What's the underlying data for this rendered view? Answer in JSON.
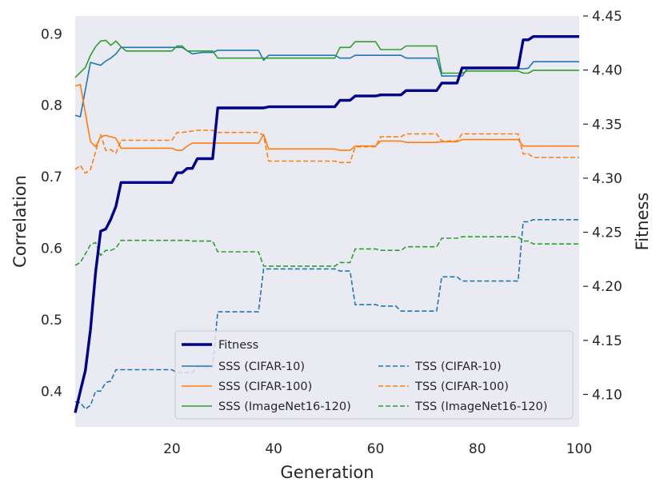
{
  "chart_data": {
    "type": "line",
    "title": "",
    "xlabel": "Generation",
    "ylabel_left": "Correlation",
    "ylabel_right": "Fitness",
    "xlim": [
      1,
      100
    ],
    "ylim_left": [
      0.35,
      0.925
    ],
    "ylim_right": [
      4.07,
      4.45
    ],
    "grid": false,
    "legend_position": "lower-right",
    "x_ticks": [
      {
        "value": 20,
        "label": "20"
      },
      {
        "value": 40,
        "label": "40"
      },
      {
        "value": 60,
        "label": "60"
      },
      {
        "value": 80,
        "label": "80"
      },
      {
        "value": 100,
        "label": "100"
      }
    ],
    "y_ticks_left": [
      {
        "value": 0.4,
        "label": "0.4"
      },
      {
        "value": 0.5,
        "label": "0.5"
      },
      {
        "value": 0.6,
        "label": "0.6"
      },
      {
        "value": 0.7,
        "label": "0.7"
      },
      {
        "value": 0.8,
        "label": "0.8"
      },
      {
        "value": 0.9,
        "label": "0.9"
      }
    ],
    "y_ticks_right": [
      {
        "value": 4.1,
        "label": "4.10"
      },
      {
        "value": 4.15,
        "label": "4.15"
      },
      {
        "value": 4.2,
        "label": "4.20"
      },
      {
        "value": 4.25,
        "label": "4.25"
      },
      {
        "value": 4.3,
        "label": "4.30"
      },
      {
        "value": 4.35,
        "label": "4.35"
      },
      {
        "value": 4.4,
        "label": "4.40"
      },
      {
        "value": 4.45,
        "label": "4.45"
      }
    ],
    "series": [
      {
        "name": "Fitness",
        "axis": "right",
        "color": "#00008b",
        "dash": "solid",
        "width": 3.4,
        "points": [
          [
            1,
            4.083
          ],
          [
            2,
            4.103
          ],
          [
            3,
            4.122
          ],
          [
            4,
            4.16
          ],
          [
            5,
            4.213
          ],
          [
            6,
            4.251
          ],
          [
            7,
            4.253
          ],
          [
            8,
            4.262
          ],
          [
            9,
            4.274
          ],
          [
            10,
            4.296
          ],
          [
            20,
            4.296
          ],
          [
            21,
            4.305
          ],
          [
            22,
            4.305
          ],
          [
            23,
            4.309
          ],
          [
            24,
            4.309
          ],
          [
            25,
            4.318
          ],
          [
            26,
            4.318
          ],
          [
            28,
            4.318
          ],
          [
            29,
            4.365
          ],
          [
            38,
            4.365
          ],
          [
            39,
            4.366
          ],
          [
            52,
            4.366
          ],
          [
            53,
            4.372
          ],
          [
            55,
            4.372
          ],
          [
            56,
            4.376
          ],
          [
            60,
            4.376
          ],
          [
            61,
            4.377
          ],
          [
            65,
            4.377
          ],
          [
            66,
            4.381
          ],
          [
            72,
            4.381
          ],
          [
            73,
            4.388
          ],
          [
            76,
            4.388
          ],
          [
            77,
            4.402
          ],
          [
            88,
            4.402
          ],
          [
            89,
            4.428
          ],
          [
            90,
            4.428
          ],
          [
            91,
            4.431
          ],
          [
            100,
            4.431
          ]
        ]
      },
      {
        "name": "SSS (CIFAR-10)",
        "axis": "left",
        "color": "#1f77b4",
        "dash": "solid",
        "width": 1.6,
        "points": [
          [
            1,
            0.786
          ],
          [
            2,
            0.784
          ],
          [
            4,
            0.86
          ],
          [
            6,
            0.856
          ],
          [
            7,
            0.862
          ],
          [
            8,
            0.866
          ],
          [
            9,
            0.872
          ],
          [
            10,
            0.881
          ],
          [
            20,
            0.881
          ],
          [
            22,
            0.881
          ],
          [
            24,
            0.872
          ],
          [
            26,
            0.874
          ],
          [
            28,
            0.874
          ],
          [
            29,
            0.877
          ],
          [
            37,
            0.877
          ],
          [
            38,
            0.863
          ],
          [
            39,
            0.87
          ],
          [
            52,
            0.87
          ],
          [
            53,
            0.866
          ],
          [
            55,
            0.866
          ],
          [
            56,
            0.87
          ],
          [
            65,
            0.87
          ],
          [
            66,
            0.866
          ],
          [
            72,
            0.866
          ],
          [
            73,
            0.841
          ],
          [
            77,
            0.841
          ],
          [
            78,
            0.851
          ],
          [
            89,
            0.851
          ],
          [
            90,
            0.852
          ],
          [
            91,
            0.861
          ],
          [
            100,
            0.861
          ]
        ]
      },
      {
        "name": "SSS (CIFAR-100)",
        "axis": "left",
        "color": "#ff7f0e",
        "dash": "solid",
        "width": 1.6,
        "points": [
          [
            1,
            0.827
          ],
          [
            2,
            0.829
          ],
          [
            4,
            0.749
          ],
          [
            5,
            0.742
          ],
          [
            6,
            0.756
          ],
          [
            7,
            0.758
          ],
          [
            8,
            0.756
          ],
          [
            9,
            0.754
          ],
          [
            10,
            0.74
          ],
          [
            20,
            0.74
          ],
          [
            21,
            0.737
          ],
          [
            22,
            0.737
          ],
          [
            23,
            0.743
          ],
          [
            24,
            0.747
          ],
          [
            37,
            0.747
          ],
          [
            38,
            0.759
          ],
          [
            39,
            0.739
          ],
          [
            52,
            0.739
          ],
          [
            53,
            0.737
          ],
          [
            55,
            0.737
          ],
          [
            56,
            0.743
          ],
          [
            60,
            0.743
          ],
          [
            61,
            0.75
          ],
          [
            65,
            0.75
          ],
          [
            66,
            0.748
          ],
          [
            72,
            0.748
          ],
          [
            73,
            0.749
          ],
          [
            76,
            0.749
          ],
          [
            77,
            0.752
          ],
          [
            88,
            0.752
          ],
          [
            89,
            0.743
          ],
          [
            100,
            0.743
          ]
        ]
      },
      {
        "name": "SSS (ImageNet16-120)",
        "axis": "left",
        "color": "#2ca02c",
        "dash": "solid",
        "width": 1.6,
        "points": [
          [
            1,
            0.839
          ],
          [
            2,
            0.846
          ],
          [
            3,
            0.853
          ],
          [
            4,
            0.87
          ],
          [
            5,
            0.882
          ],
          [
            6,
            0.89
          ],
          [
            7,
            0.891
          ],
          [
            8,
            0.884
          ],
          [
            9,
            0.89
          ],
          [
            10,
            0.882
          ],
          [
            11,
            0.876
          ],
          [
            20,
            0.876
          ],
          [
            21,
            0.883
          ],
          [
            22,
            0.883
          ],
          [
            23,
            0.876
          ],
          [
            28,
            0.876
          ],
          [
            29,
            0.866
          ],
          [
            52,
            0.866
          ],
          [
            53,
            0.881
          ],
          [
            55,
            0.881
          ],
          [
            56,
            0.889
          ],
          [
            60,
            0.889
          ],
          [
            61,
            0.878
          ],
          [
            65,
            0.878
          ],
          [
            66,
            0.883
          ],
          [
            72,
            0.883
          ],
          [
            73,
            0.845
          ],
          [
            77,
            0.845
          ],
          [
            78,
            0.848
          ],
          [
            88,
            0.848
          ],
          [
            89,
            0.845
          ],
          [
            90,
            0.845
          ],
          [
            91,
            0.849
          ],
          [
            100,
            0.849
          ]
        ]
      },
      {
        "name": "TSS (CIFAR-10)",
        "axis": "left",
        "color": "#1f77b4",
        "dash": "dashed",
        "width": 1.6,
        "points": [
          [
            1,
            0.385
          ],
          [
            2,
            0.384
          ],
          [
            3,
            0.375
          ],
          [
            4,
            0.38
          ],
          [
            5,
            0.4
          ],
          [
            6,
            0.4
          ],
          [
            7,
            0.412
          ],
          [
            8,
            0.414
          ],
          [
            9,
            0.43
          ],
          [
            20,
            0.43
          ],
          [
            21,
            0.426
          ],
          [
            24,
            0.426
          ],
          [
            25,
            0.434
          ],
          [
            28,
            0.434
          ],
          [
            29,
            0.511
          ],
          [
            37,
            0.511
          ],
          [
            38,
            0.571
          ],
          [
            52,
            0.571
          ],
          [
            53,
            0.568
          ],
          [
            55,
            0.568
          ],
          [
            56,
            0.521
          ],
          [
            60,
            0.521
          ],
          [
            61,
            0.519
          ],
          [
            64,
            0.519
          ],
          [
            65,
            0.512
          ],
          [
            72,
            0.512
          ],
          [
            73,
            0.56
          ],
          [
            76,
            0.56
          ],
          [
            77,
            0.554
          ],
          [
            88,
            0.554
          ],
          [
            89,
            0.637
          ],
          [
            90,
            0.637
          ],
          [
            91,
            0.64
          ],
          [
            100,
            0.64
          ]
        ]
      },
      {
        "name": "TSS (CIFAR-100)",
        "axis": "left",
        "color": "#ff7f0e",
        "dash": "dashed",
        "width": 1.6,
        "points": [
          [
            1,
            0.71
          ],
          [
            2,
            0.716
          ],
          [
            3,
            0.705
          ],
          [
            4,
            0.71
          ],
          [
            5,
            0.735
          ],
          [
            6,
            0.759
          ],
          [
            7,
            0.737
          ],
          [
            8,
            0.738
          ],
          [
            9,
            0.733
          ],
          [
            10,
            0.751
          ],
          [
            20,
            0.751
          ],
          [
            21,
            0.762
          ],
          [
            22,
            0.762
          ],
          [
            23,
            0.763
          ],
          [
            25,
            0.765
          ],
          [
            28,
            0.765
          ],
          [
            29,
            0.762
          ],
          [
            37,
            0.762
          ],
          [
            38,
            0.758
          ],
          [
            39,
            0.722
          ],
          [
            52,
            0.722
          ],
          [
            53,
            0.72
          ],
          [
            55,
            0.72
          ],
          [
            56,
            0.742
          ],
          [
            60,
            0.742
          ],
          [
            61,
            0.756
          ],
          [
            65,
            0.756
          ],
          [
            66,
            0.76
          ],
          [
            72,
            0.76
          ],
          [
            73,
            0.75
          ],
          [
            76,
            0.75
          ],
          [
            77,
            0.76
          ],
          [
            88,
            0.76
          ],
          [
            89,
            0.732
          ],
          [
            90,
            0.732
          ],
          [
            91,
            0.727
          ],
          [
            100,
            0.727
          ]
        ]
      },
      {
        "name": "TSS (ImageNet16-120)",
        "axis": "left",
        "color": "#2ca02c",
        "dash": "dashed",
        "width": 1.6,
        "points": [
          [
            1,
            0.576
          ],
          [
            2,
            0.58
          ],
          [
            3,
            0.592
          ],
          [
            4,
            0.605
          ],
          [
            5,
            0.608
          ],
          [
            6,
            0.59
          ],
          [
            7,
            0.597
          ],
          [
            8,
            0.597
          ],
          [
            9,
            0.6
          ],
          [
            10,
            0.611
          ],
          [
            23,
            0.611
          ],
          [
            24,
            0.61
          ],
          [
            28,
            0.61
          ],
          [
            29,
            0.595
          ],
          [
            37,
            0.595
          ],
          [
            38,
            0.575
          ],
          [
            52,
            0.575
          ],
          [
            53,
            0.58
          ],
          [
            55,
            0.58
          ],
          [
            56,
            0.599
          ],
          [
            60,
            0.599
          ],
          [
            61,
            0.597
          ],
          [
            65,
            0.597
          ],
          [
            66,
            0.602
          ],
          [
            72,
            0.602
          ],
          [
            73,
            0.614
          ],
          [
            76,
            0.614
          ],
          [
            77,
            0.616
          ],
          [
            88,
            0.616
          ],
          [
            89,
            0.61
          ],
          [
            90,
            0.61
          ],
          [
            91,
            0.606
          ],
          [
            100,
            0.606
          ]
        ]
      }
    ]
  }
}
